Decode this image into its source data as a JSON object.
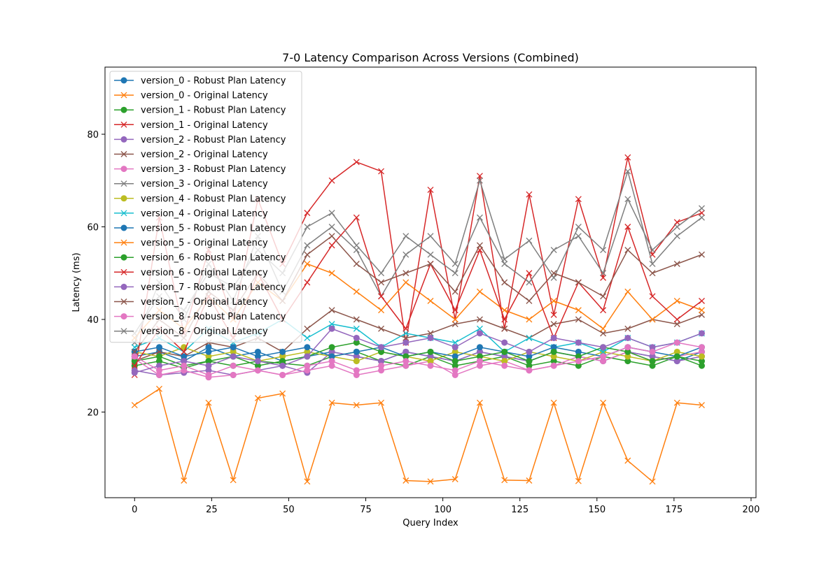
{
  "chart_data": {
    "type": "line",
    "title": "7-0 Latency Comparison Across Versions (Combined)",
    "xlabel": "Query Index",
    "ylabel": "Latency (ms)",
    "xlim": [
      -9.6,
      201.6
    ],
    "ylim": [
      1.5,
      94.5
    ],
    "xticks": [
      0,
      25,
      50,
      75,
      100,
      125,
      150,
      175,
      200
    ],
    "yticks": [
      20,
      40,
      60,
      80
    ],
    "grid": false,
    "legend_position": "upper-left",
    "x": [
      0,
      8,
      16,
      24,
      32,
      40,
      48,
      56,
      64,
      72,
      80,
      88,
      96,
      104,
      112,
      120,
      128,
      136,
      144,
      152,
      160,
      168,
      176,
      184
    ],
    "series": [
      {
        "name": "version_0 - Robust Plan Latency",
        "color": "#1f77b4",
        "marker": "o",
        "values": [
          32,
          33,
          31,
          34,
          32,
          33,
          31,
          32,
          33,
          32,
          31,
          33,
          32,
          31,
          33,
          32,
          31,
          33,
          32,
          31,
          33,
          32,
          31,
          33
        ]
      },
      {
        "name": "version_0 - Original Latency",
        "color": "#ff7f0e",
        "marker": "x",
        "values": [
          21.5,
          25,
          5.2,
          22,
          5.3,
          23,
          24,
          5,
          22,
          21.5,
          22,
          5.2,
          5,
          5.5,
          22,
          5.3,
          5.2,
          22,
          5.1,
          22,
          9.5,
          5,
          22,
          21.5
        ]
      },
      {
        "name": "version_1 - Robust Plan Latency",
        "color": "#2ca02c",
        "marker": "o",
        "values": [
          30,
          31,
          29.5,
          31,
          30,
          31,
          30.5,
          30,
          32,
          33,
          31,
          30,
          32,
          30,
          31,
          32,
          30,
          31,
          30,
          32,
          31,
          30,
          32,
          31
        ]
      },
      {
        "name": "version_1 - Original Latency",
        "color": "#d62728",
        "marker": "x",
        "values": [
          28,
          62,
          37,
          55,
          40,
          66,
          52,
          63,
          70,
          74,
          72,
          35,
          68,
          40,
          71,
          38,
          67,
          41,
          66,
          49,
          75,
          54,
          61,
          63
        ]
      },
      {
        "name": "version_2 - Robust Plan Latency",
        "color": "#9467bd",
        "marker": "o",
        "values": [
          29,
          28,
          28.5,
          29,
          28,
          29,
          30,
          28.5,
          33,
          32,
          31,
          33,
          32,
          31,
          33,
          32,
          31,
          33,
          32,
          31,
          33,
          32,
          31,
          32
        ]
      },
      {
        "name": "version_2 - Original Latency",
        "color": "#8c564b",
        "marker": "x",
        "values": [
          31,
          33,
          32,
          35,
          34,
          36,
          33,
          38,
          42,
          40,
          38,
          36,
          37,
          39,
          40,
          38,
          36,
          39,
          40,
          37,
          38,
          40,
          39,
          41
        ]
      },
      {
        "name": "version_3 - Robust Plan Latency",
        "color": "#e377c2",
        "marker": "o",
        "values": [
          31.5,
          28,
          29,
          27.5,
          28,
          29,
          28,
          29,
          30,
          28,
          29,
          30,
          31,
          28,
          30,
          31,
          29,
          30,
          32,
          31,
          33,
          31,
          32,
          33
        ]
      },
      {
        "name": "version_3 - Original Latency",
        "color": "#7f7f7f",
        "marker": "x",
        "values": [
          35,
          48,
          40,
          52,
          44,
          58,
          46,
          56,
          60,
          55,
          45,
          54,
          58,
          52,
          70,
          53,
          57,
          49,
          60,
          55,
          72,
          52,
          58,
          62
        ]
      },
      {
        "name": "version_4 - Robust Plan Latency",
        "color": "#bcbd22",
        "marker": "o",
        "values": [
          33,
          32,
          34,
          32,
          33,
          31,
          32,
          33,
          32,
          31,
          33,
          32,
          31,
          33,
          32,
          31,
          33,
          32,
          31,
          33,
          32,
          31,
          33,
          32
        ]
      },
      {
        "name": "version_4 - Original Latency",
        "color": "#17becf",
        "marker": "x",
        "values": [
          34,
          36,
          33,
          38,
          35,
          37,
          40,
          36,
          39,
          38,
          34,
          37,
          36,
          35,
          38,
          33,
          36,
          34,
          35,
          33,
          36,
          34,
          35,
          37
        ]
      },
      {
        "name": "version_5 - Robust Plan Latency",
        "color": "#1f77b4",
        "marker": "o",
        "values": [
          33,
          34,
          32,
          33,
          34,
          32,
          33,
          34,
          32,
          33,
          34,
          32,
          33,
          32,
          34,
          33,
          32,
          34,
          33,
          32,
          34,
          33,
          32,
          34
        ]
      },
      {
        "name": "version_5 - Original Latency",
        "color": "#ff7f0e",
        "marker": "x",
        "values": [
          36,
          42,
          38,
          45,
          40,
          48,
          44,
          52,
          50,
          46,
          42,
          48,
          44,
          40,
          46,
          42,
          40,
          44,
          42,
          38,
          46,
          40,
          44,
          42
        ]
      },
      {
        "name": "version_6 - Robust Plan Latency",
        "color": "#2ca02c",
        "marker": "o",
        "values": [
          31,
          32,
          30,
          31,
          32,
          30,
          31,
          32,
          34,
          35,
          33,
          32,
          33,
          31,
          32,
          33,
          31,
          33,
          32,
          34,
          33,
          31,
          32,
          30
        ]
      },
      {
        "name": "version_6 - Original Latency",
        "color": "#d62728",
        "marker": "x",
        "values": [
          30,
          38,
          33,
          45,
          36,
          50,
          40,
          48,
          56,
          62,
          45,
          38,
          52,
          42,
          55,
          40,
          50,
          36,
          48,
          42,
          60,
          45,
          40,
          44
        ]
      },
      {
        "name": "version_7 - Robust Plan Latency",
        "color": "#9467bd",
        "marker": "o",
        "values": [
          28.5,
          30,
          31,
          30,
          32,
          31,
          30,
          32,
          38,
          36,
          34,
          35,
          36,
          34,
          37,
          35,
          33,
          36,
          35,
          34,
          36,
          34,
          35,
          37
        ]
      },
      {
        "name": "version_7 - Original Latency",
        "color": "#8c564b",
        "marker": "x",
        "values": [
          33,
          40,
          36,
          46,
          42,
          50,
          44,
          54,
          58,
          52,
          48,
          50,
          52,
          46,
          56,
          48,
          44,
          50,
          48,
          45,
          55,
          50,
          52,
          54
        ]
      },
      {
        "name": "version_8 - Robust Plan Latency",
        "color": "#e377c2",
        "marker": "o",
        "values": [
          32,
          29,
          30,
          28,
          30,
          29,
          28,
          30,
          31,
          29,
          30,
          31,
          30,
          29,
          31,
          30,
          29,
          30,
          31,
          32,
          34,
          33,
          35,
          34
        ]
      },
      {
        "name": "version_8 - Original Latency",
        "color": "#7f7f7f",
        "marker": "x",
        "values": [
          37,
          45,
          42,
          50,
          47,
          55,
          50,
          60,
          63,
          56,
          50,
          58,
          54,
          50,
          62,
          52,
          48,
          55,
          58,
          50,
          66,
          55,
          60,
          64
        ]
      }
    ]
  }
}
